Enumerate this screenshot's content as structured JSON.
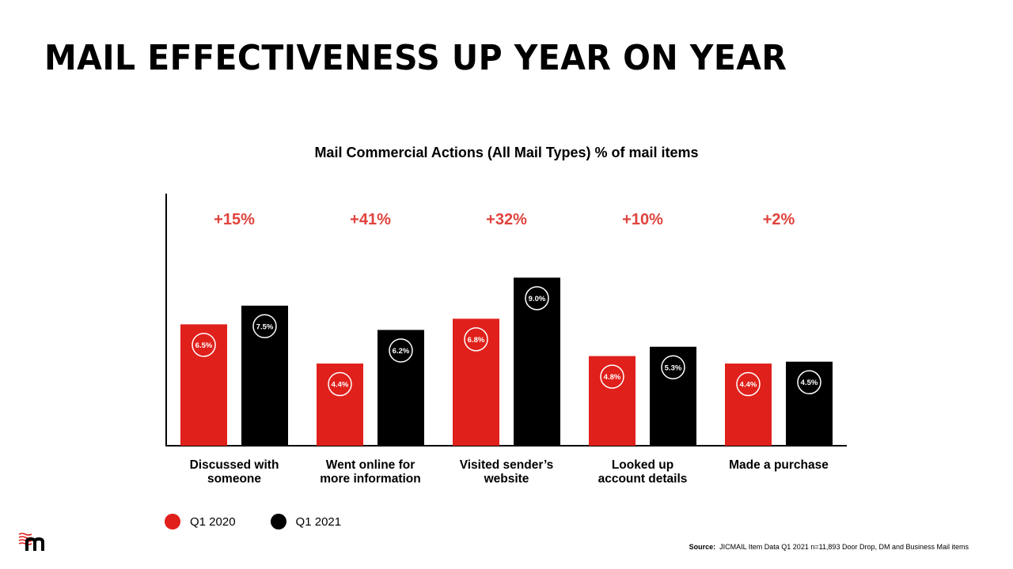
{
  "page": {
    "title": "MAIL EFFECTIVENESS UP YEAR ON YEAR",
    "source_label": "Source:",
    "source_text": "JICMAIL Item Data Q1 2021 n=11,893 Door Drop, DM and Business Mail items"
  },
  "colors": {
    "q1_2020": "#e0201b",
    "q1_2021": "#000000",
    "change": "#e0433d"
  },
  "chart_data": {
    "type": "bar",
    "title": "Mail Commercial Actions (All Mail Types) % of mail items",
    "categories": [
      [
        "Discussed with",
        "someone"
      ],
      [
        "Went online for",
        "more information"
      ],
      [
        "Visited sender’s",
        "website"
      ],
      [
        "Looked up",
        "account details"
      ],
      [
        "Made a purchase"
      ]
    ],
    "series": [
      {
        "name": "Q1 2020",
        "values": [
          6.5,
          4.4,
          6.8,
          4.8,
          4.4
        ],
        "labels": [
          "6.5%",
          "4.4%",
          "6.8%",
          "4.8%",
          "4.4%"
        ]
      },
      {
        "name": "Q1 2021",
        "values": [
          7.5,
          6.2,
          9.0,
          5.3,
          4.5
        ],
        "labels": [
          "7.5%",
          "6.2%",
          "9.0%",
          "5.3%",
          "4.5%"
        ]
      }
    ],
    "changes": [
      "+15%",
      "+41%",
      "+32%",
      "+10%",
      "+2%"
    ],
    "ylim": [
      0,
      13.5
    ],
    "grid": false,
    "legend_position": "bottom-left"
  }
}
